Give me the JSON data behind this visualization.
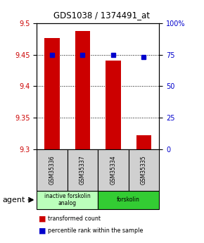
{
  "title": "GDS1038 / 1374491_at",
  "samples": [
    "GSM35336",
    "GSM35337",
    "GSM35334",
    "GSM35335"
  ],
  "bar_values": [
    9.476,
    9.488,
    9.441,
    9.322
  ],
  "percentile_values": [
    75,
    75,
    75,
    73
  ],
  "bar_color": "#cc0000",
  "percentile_color": "#0000cc",
  "ylim_left": [
    9.3,
    9.5
  ],
  "ylim_right": [
    0,
    100
  ],
  "yticks_left": [
    9.3,
    9.35,
    9.4,
    9.45,
    9.5
  ],
  "yticks_right": [
    0,
    25,
    50,
    75,
    100
  ],
  "groups": [
    {
      "label": "inactive forskolin\nanalog",
      "color": "#bbffbb",
      "span": [
        0,
        2
      ]
    },
    {
      "label": "forskolin",
      "color": "#33cc33",
      "span": [
        2,
        4
      ]
    }
  ],
  "agent_label": "agent",
  "legend_red": "transformed count",
  "legend_blue": "percentile rank within the sample",
  "background_color": "#ffffff",
  "sample_box_color": "#d0d0d0"
}
